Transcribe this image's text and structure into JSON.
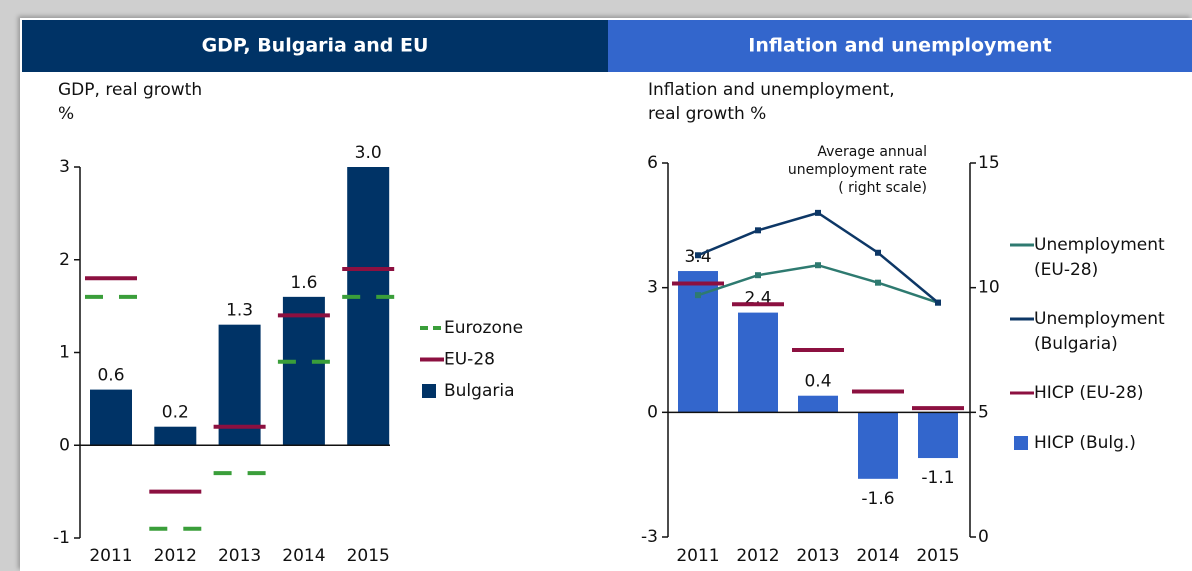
{
  "chart_data": [
    {
      "type": "bar",
      "title": "GDP, Bulgaria and EU",
      "ylabel": [
        "GDP, real growth",
        "%"
      ],
      "categories": [
        "2011",
        "2012",
        "2013",
        "2014",
        "2015"
      ],
      "ylim": [
        -1,
        3
      ],
      "yticks": [
        -1,
        0,
        1,
        2,
        3
      ],
      "series": [
        {
          "name": "Eurozone",
          "color": "#3a9e3a",
          "kind": "marker",
          "dashed": true,
          "values": [
            1.6,
            -0.9,
            -0.3,
            0.9,
            1.6
          ]
        },
        {
          "name": "EU-28",
          "color": "#8c1040",
          "kind": "marker",
          "dashed": false,
          "values": [
            1.8,
            -0.5,
            0.2,
            1.4,
            1.9
          ]
        },
        {
          "name": "Bulgaria",
          "color": "#003366",
          "kind": "bar",
          "values": [
            0.6,
            0.2,
            1.3,
            1.6,
            3.0
          ],
          "value_labels": [
            "0.6",
            "0.2",
            "1.3",
            "1.6",
            "3.0"
          ]
        }
      ]
    },
    {
      "type": "bar",
      "title": "Inflation and unemployment",
      "ylabel": [
        "Inflation and unemployment,",
        "real growth  %"
      ],
      "annotation": [
        "Average annual",
        "unemployment rate",
        "( right scale)"
      ],
      "categories": [
        "2011",
        "2012",
        "2013",
        "2014",
        "2015"
      ],
      "ylim": [
        -3,
        6
      ],
      "yticks": [
        -3,
        0,
        3,
        6
      ],
      "y2lim": [
        0,
        15
      ],
      "y2ticks": [
        0,
        5,
        10,
        15
      ],
      "series": [
        {
          "name": "Unemployment (EU-28)",
          "color": "#2e7a70",
          "kind": "line",
          "axis": "y2",
          "values": [
            9.7,
            10.5,
            10.9,
            10.2,
            9.4
          ]
        },
        {
          "name": "Unemployment (Bulgaria)",
          "color": "#0d3766",
          "kind": "line",
          "axis": "y2",
          "values": [
            11.3,
            12.3,
            13.0,
            11.4,
            9.4
          ]
        },
        {
          "name": "HICP (EU-28)",
          "color": "#8c1040",
          "kind": "marker",
          "dashed": false,
          "values": [
            3.1,
            2.6,
            1.5,
            0.5,
            0.1
          ]
        },
        {
          "name": "HICP (Bulg.)",
          "color": "#3366cc",
          "kind": "bar",
          "values": [
            3.4,
            2.4,
            0.4,
            -1.6,
            -1.1
          ]
        }
      ]
    }
  ]
}
